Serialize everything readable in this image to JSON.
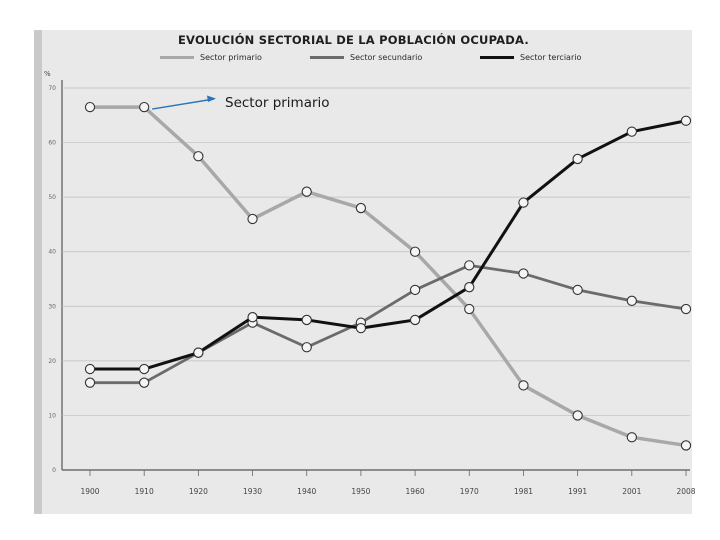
{
  "chart_data": {
    "type": "line",
    "title": "EVOLUCIÓN SECTORIAL DE LA POBLACIÓN OCUPADA.",
    "ylabel": "%",
    "xlabel": "",
    "ylim": [
      0,
      70
    ],
    "yticks": [
      "0",
      "10",
      "20",
      "30",
      "40",
      "50",
      "60",
      "70"
    ],
    "x": [
      "1900",
      "1910",
      "1920",
      "1930",
      "1940",
      "1950",
      "1960",
      "1970",
      "1981",
      "1991",
      "2001",
      "2008"
    ],
    "grid": true,
    "legend_position": "top",
    "series": [
      {
        "name": "Sector primario",
        "color": "#a8a8a8",
        "values": [
          66.5,
          66.5,
          57.5,
          46,
          51,
          48,
          40,
          29.5,
          15.5,
          10,
          6,
          4.5
        ]
      },
      {
        "name": "Sector secundario",
        "color": "#6b6b6b",
        "values": [
          16,
          16,
          21.5,
          27,
          22.5,
          27,
          33,
          37.5,
          36,
          33,
          31,
          29.5
        ]
      },
      {
        "name": "Sector terciario",
        "color": "#111111",
        "values": [
          18.5,
          18.5,
          21.5,
          28,
          27.5,
          26,
          27.5,
          33.5,
          49,
          57,
          62,
          64
        ]
      }
    ],
    "annotation": {
      "text": "Sector primario",
      "series": "Sector primario",
      "x": "1910",
      "arrow_color": "#2e75b6"
    }
  }
}
